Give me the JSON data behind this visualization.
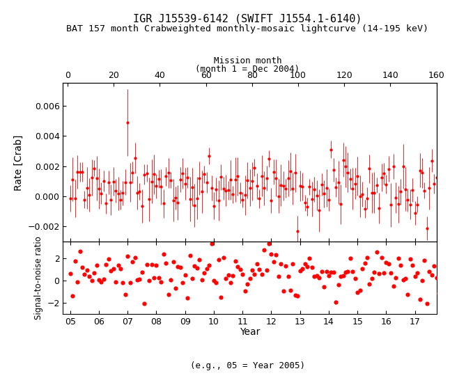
{
  "title1": "IGR J15539-6142 (SWIFT J1554.1-6140)",
  "title2": "BAT 157 month Crabweighted monthly-mosaic lightcurve (14-195 keV)",
  "top_xlabel": "Mission month",
  "top_xlabel2": "(month 1 = Dec 2004)",
  "bottom_xlabel": "Year",
  "bottom_xlabel2": "(e.g., 05 = Year 2005)",
  "ylabel_top": "Rate [Crab]",
  "ylabel_bottom": "Signal-to-noise ratio",
  "n_months": 157,
  "x_mission_ticks": [
    0,
    20,
    40,
    60,
    80,
    100,
    120,
    140,
    160
  ],
  "year_ticks": [
    "05",
    "06",
    "07",
    "08",
    "09",
    "10",
    "11",
    "12",
    "13",
    "14",
    "15",
    "16",
    "17"
  ],
  "rate_ylim": [
    -0.003,
    0.0075
  ],
  "snr_ylim": [
    -3.0,
    3.5
  ],
  "color": "#ff0000",
  "bg_color": "#ffffff",
  "seed": 42
}
